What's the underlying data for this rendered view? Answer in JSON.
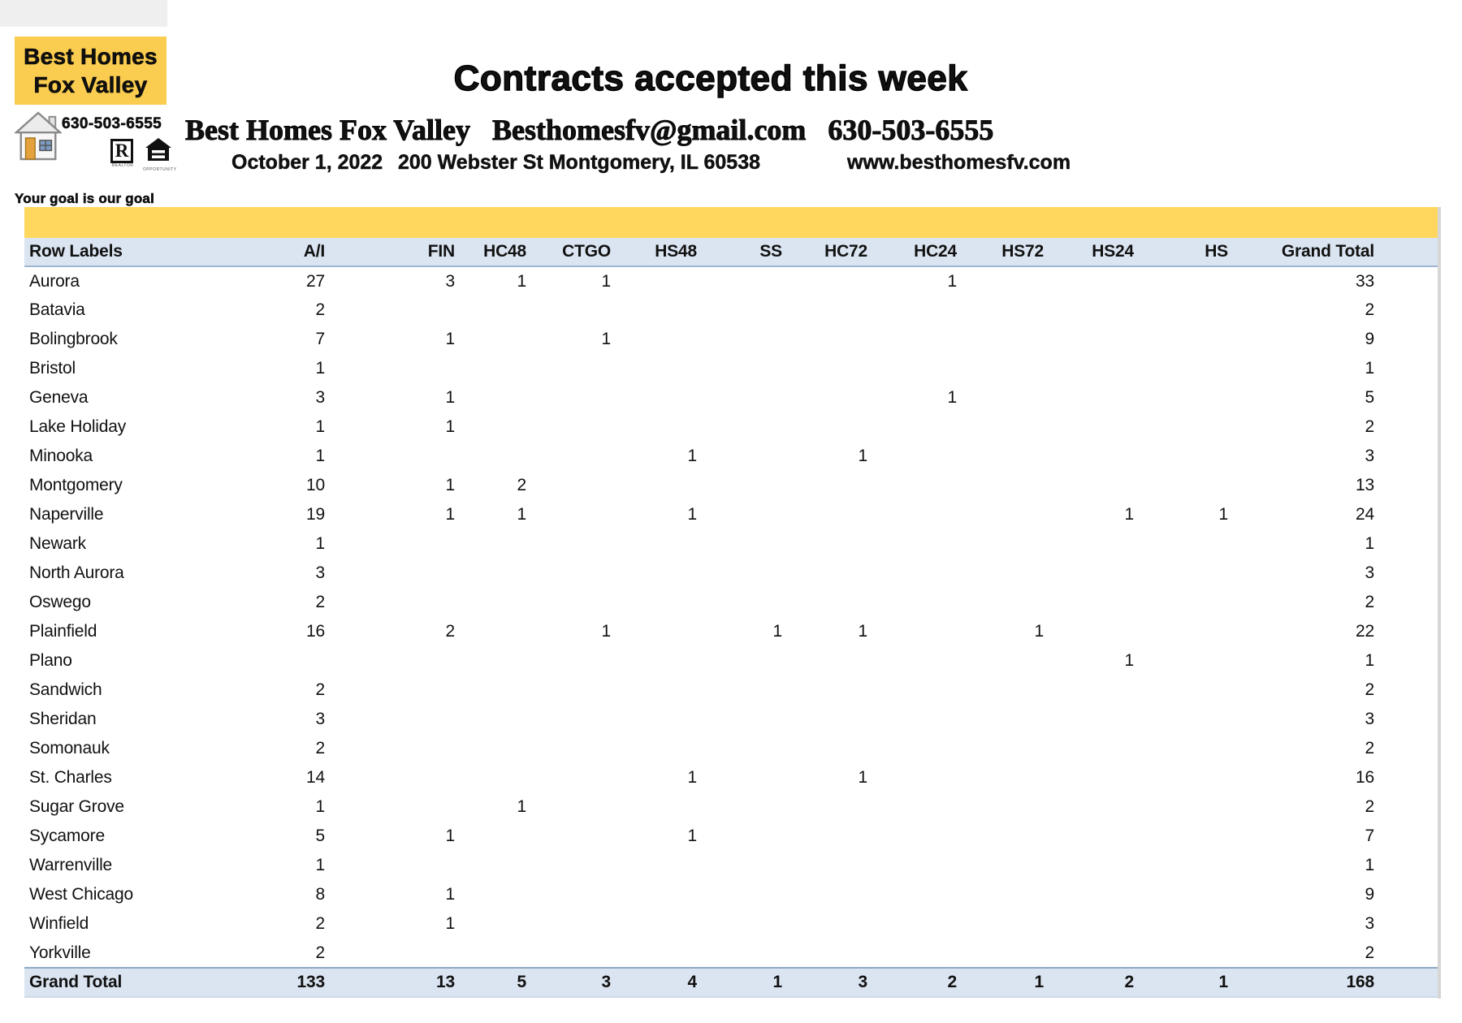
{
  "header": {
    "title": "Contracts accepted this week",
    "company": "Best Homes Fox Valley",
    "email": "Besthomesfv@gmail.com",
    "phone": "630-503-6555",
    "date": "October 1, 2022",
    "address": "200 Webster St Montgomery, IL 60538",
    "website": "www.besthomesfv.com"
  },
  "logo": {
    "line1": "Best Homes",
    "line2": "Fox Valley",
    "phone": "630-503-6555",
    "tagline": "Your goal is our goal",
    "realtor_letter": "R",
    "realtor_caption": "REALTOR",
    "equal_housing_caption": "OPPORTUNITY",
    "colors": {
      "logo_yellow": "#FACC4F"
    }
  },
  "table": {
    "band_color": "#FFD75F",
    "header_bg": "#DBE5F1",
    "total_bg": "#DBE5F1",
    "columns": [
      "Row Labels",
      "A/I",
      "FIN",
      "HC48",
      "CTGO",
      "HS48",
      "SS",
      "HC72",
      "HC24",
      "HS72",
      "HS24",
      "HS",
      "Grand Total"
    ],
    "rows": [
      {
        "label": "Aurora",
        "values": [
          "27",
          "3",
          "1",
          "1",
          "",
          "",
          "",
          "1",
          "",
          "",
          ""
        ],
        "total": "33"
      },
      {
        "label": "Batavia",
        "values": [
          "2",
          "",
          "",
          "",
          "",
          "",
          "",
          "",
          "",
          "",
          ""
        ],
        "total": "2"
      },
      {
        "label": "Bolingbrook",
        "values": [
          "7",
          "1",
          "",
          "1",
          "",
          "",
          "",
          "",
          "",
          "",
          ""
        ],
        "total": "9"
      },
      {
        "label": "Bristol",
        "values": [
          "1",
          "",
          "",
          "",
          "",
          "",
          "",
          "",
          "",
          "",
          ""
        ],
        "total": "1"
      },
      {
        "label": "Geneva",
        "values": [
          "3",
          "1",
          "",
          "",
          "",
          "",
          "",
          "1",
          "",
          "",
          ""
        ],
        "total": "5"
      },
      {
        "label": "Lake Holiday",
        "values": [
          "1",
          "1",
          "",
          "",
          "",
          "",
          "",
          "",
          "",
          "",
          ""
        ],
        "total": "2"
      },
      {
        "label": "Minooka",
        "values": [
          "1",
          "",
          "",
          "",
          "1",
          "",
          "1",
          "",
          "",
          "",
          ""
        ],
        "total": "3"
      },
      {
        "label": "Montgomery",
        "values": [
          "10",
          "1",
          "2",
          "",
          "",
          "",
          "",
          "",
          "",
          "",
          ""
        ],
        "total": "13"
      },
      {
        "label": "Naperville",
        "values": [
          "19",
          "1",
          "1",
          "",
          "1",
          "",
          "",
          "",
          "",
          "1",
          "1"
        ],
        "total": "24"
      },
      {
        "label": "Newark",
        "values": [
          "1",
          "",
          "",
          "",
          "",
          "",
          "",
          "",
          "",
          "",
          ""
        ],
        "total": "1"
      },
      {
        "label": "North Aurora",
        "values": [
          "3",
          "",
          "",
          "",
          "",
          "",
          "",
          "",
          "",
          "",
          ""
        ],
        "total": "3"
      },
      {
        "label": "Oswego",
        "values": [
          "2",
          "",
          "",
          "",
          "",
          "",
          "",
          "",
          "",
          "",
          ""
        ],
        "total": "2"
      },
      {
        "label": "Plainfield",
        "values": [
          "16",
          "2",
          "",
          "1",
          "",
          "1",
          "1",
          "",
          "1",
          "",
          ""
        ],
        "total": "22"
      },
      {
        "label": "Plano",
        "values": [
          "",
          "",
          "",
          "",
          "",
          "",
          "",
          "",
          "",
          "1",
          ""
        ],
        "total": "1"
      },
      {
        "label": "Sandwich",
        "values": [
          "2",
          "",
          "",
          "",
          "",
          "",
          "",
          "",
          "",
          "",
          ""
        ],
        "total": "2"
      },
      {
        "label": "Sheridan",
        "values": [
          "3",
          "",
          "",
          "",
          "",
          "",
          "",
          "",
          "",
          "",
          ""
        ],
        "total": "3"
      },
      {
        "label": "Somonauk",
        "values": [
          "2",
          "",
          "",
          "",
          "",
          "",
          "",
          "",
          "",
          "",
          ""
        ],
        "total": "2"
      },
      {
        "label": "St. Charles",
        "values": [
          "14",
          "",
          "",
          "",
          "1",
          "",
          "1",
          "",
          "",
          "",
          ""
        ],
        "total": "16"
      },
      {
        "label": "Sugar Grove",
        "values": [
          "1",
          "",
          "1",
          "",
          "",
          "",
          "",
          "",
          "",
          "",
          ""
        ],
        "total": "2"
      },
      {
        "label": "Sycamore",
        "values": [
          "5",
          "1",
          "",
          "",
          "1",
          "",
          "",
          "",
          "",
          "",
          ""
        ],
        "total": "7"
      },
      {
        "label": "Warrenville",
        "values": [
          "1",
          "",
          "",
          "",
          "",
          "",
          "",
          "",
          "",
          "",
          ""
        ],
        "total": "1"
      },
      {
        "label": "West Chicago",
        "values": [
          "8",
          "1",
          "",
          "",
          "",
          "",
          "",
          "",
          "",
          "",
          ""
        ],
        "total": "9"
      },
      {
        "label": "Winfield",
        "values": [
          "2",
          "1",
          "",
          "",
          "",
          "",
          "",
          "",
          "",
          "",
          ""
        ],
        "total": "3"
      },
      {
        "label": "Yorkville",
        "values": [
          "2",
          "",
          "",
          "",
          "",
          "",
          "",
          "",
          "",
          "",
          ""
        ],
        "total": "2"
      }
    ],
    "grand_total": {
      "label": "Grand Total",
      "values": [
        "133",
        "13",
        "5",
        "3",
        "4",
        "1",
        "3",
        "2",
        "1",
        "2",
        "1"
      ],
      "total": "168"
    }
  }
}
